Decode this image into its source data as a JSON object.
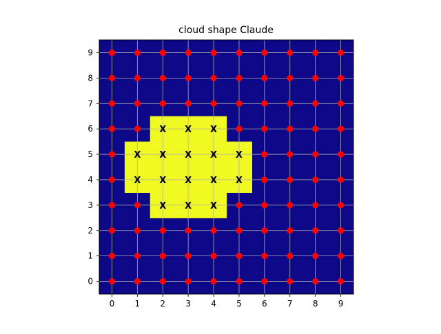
{
  "chart_data": {
    "type": "heatmap",
    "title": "cloud shape Claude",
    "xlabel": "",
    "ylabel": "",
    "xlim": [
      -0.5,
      9.5
    ],
    "ylim": [
      -0.5,
      9.5
    ],
    "x_ticks": [
      "0",
      "1",
      "2",
      "3",
      "4",
      "5",
      "6",
      "7",
      "8",
      "9"
    ],
    "y_ticks": [
      "0",
      "1",
      "2",
      "3",
      "4",
      "5",
      "6",
      "7",
      "8",
      "9"
    ],
    "grid": true,
    "legend": "none",
    "cloud_cells": [
      [
        2,
        6
      ],
      [
        3,
        6
      ],
      [
        4,
        6
      ],
      [
        1,
        5
      ],
      [
        2,
        5
      ],
      [
        3,
        5
      ],
      [
        4,
        5
      ],
      [
        5,
        5
      ],
      [
        1,
        4
      ],
      [
        2,
        4
      ],
      [
        3,
        4
      ],
      [
        4,
        4
      ],
      [
        5,
        4
      ],
      [
        2,
        3
      ],
      [
        3,
        3
      ],
      [
        4,
        3
      ]
    ],
    "cell_marker_text": "X",
    "colors": {
      "background": "#0d0887",
      "cloud": "#f0f921",
      "dot": "#ff0000",
      "x_marker": "#000000",
      "grid": "#b0b0b0"
    }
  }
}
